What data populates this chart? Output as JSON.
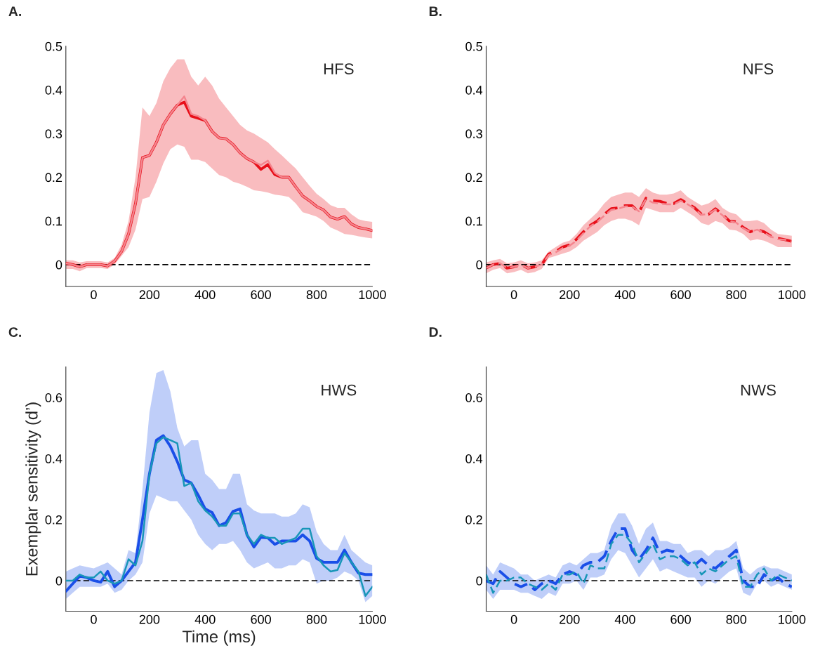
{
  "chart_data": [
    {
      "type": "line",
      "title": "A.",
      "annotations": [
        "HFS"
      ],
      "xlim": [
        -100,
        1000
      ],
      "xticks": [
        0,
        200,
        400,
        600,
        800,
        1000
      ],
      "ylim": [
        -0.05,
        0.5
      ],
      "yticks": [
        0,
        0.1,
        0.2,
        0.3,
        0.4,
        0.5
      ],
      "grid": false,
      "legend": false,
      "x": [
        -100,
        -75,
        -50,
        -25,
        0,
        25,
        50,
        75,
        100,
        125,
        150,
        175,
        200,
        225,
        250,
        275,
        300,
        325,
        350,
        375,
        400,
        425,
        450,
        475,
        500,
        525,
        550,
        575,
        600,
        625,
        650,
        675,
        700,
        725,
        750,
        775,
        800,
        825,
        850,
        875,
        900,
        925,
        950,
        975,
        1000
      ],
      "ref_lines": [
        {
          "axis": "y",
          "value": 0,
          "color": "#000000",
          "line_style": "dashed"
        }
      ],
      "series": [
        {
          "color": "#e8101a",
          "line_style": "solid",
          "values": [
            0.003,
            0.0,
            -0.005,
            0.0,
            0.0,
            0.0,
            -0.003,
            0.008,
            0.03,
            0.07,
            0.14,
            0.245,
            0.25,
            0.28,
            0.32,
            0.345,
            0.365,
            0.372,
            0.34,
            0.335,
            0.33,
            0.305,
            0.29,
            0.288,
            0.275,
            0.256,
            0.243,
            0.235,
            0.218,
            0.229,
            0.206,
            0.2,
            0.2,
            0.178,
            0.157,
            0.146,
            0.133,
            0.125,
            0.109,
            0.104,
            0.11,
            0.093,
            0.085,
            0.082,
            0.078
          ],
          "upper": [
            0.01,
            0.01,
            0.005,
            0.008,
            0.008,
            0.008,
            0.005,
            0.015,
            0.045,
            0.1,
            0.2,
            0.36,
            0.34,
            0.37,
            0.42,
            0.45,
            0.47,
            0.47,
            0.43,
            0.41,
            0.43,
            0.41,
            0.38,
            0.36,
            0.34,
            0.32,
            0.307,
            0.3,
            0.29,
            0.28,
            0.264,
            0.25,
            0.235,
            0.22,
            0.2,
            0.18,
            0.162,
            0.15,
            0.136,
            0.13,
            0.13,
            0.115,
            0.104,
            0.1,
            0.098
          ],
          "lower": [
            -0.01,
            -0.01,
            -0.015,
            -0.008,
            -0.008,
            -0.008,
            -0.01,
            0.0,
            0.02,
            0.04,
            0.08,
            0.15,
            0.155,
            0.19,
            0.232,
            0.264,
            0.275,
            0.27,
            0.24,
            0.24,
            0.235,
            0.22,
            0.205,
            0.2,
            0.19,
            0.185,
            0.178,
            0.17,
            0.168,
            0.165,
            0.16,
            0.158,
            0.155,
            0.14,
            0.12,
            0.115,
            0.11,
            0.1,
            0.085,
            0.078,
            0.07,
            0.068,
            0.065,
            0.062,
            0.06
          ]
        },
        {
          "color": "#f4858e",
          "line_style": "solid",
          "values": [
            0.003,
            0.0,
            -0.005,
            0.0,
            0.0,
            0.0,
            -0.003,
            0.008,
            0.03,
            0.07,
            0.14,
            0.245,
            0.25,
            0.28,
            0.32,
            0.345,
            0.365,
            0.385,
            0.345,
            0.34,
            0.33,
            0.305,
            0.29,
            0.288,
            0.275,
            0.256,
            0.243,
            0.235,
            0.228,
            0.238,
            0.21,
            0.2,
            0.2,
            0.178,
            0.157,
            0.146,
            0.133,
            0.125,
            0.109,
            0.104,
            0.11,
            0.093,
            0.085,
            0.082,
            0.078
          ]
        }
      ]
    },
    {
      "type": "line",
      "title": "B.",
      "annotations": [
        "NFS"
      ],
      "xlim": [
        -100,
        1000
      ],
      "xticks": [
        0,
        200,
        400,
        600,
        800,
        1000
      ],
      "ylim": [
        -0.05,
        0.5
      ],
      "yticks": [
        0,
        0.1,
        0.2,
        0.3,
        0.4,
        0.5
      ],
      "grid": false,
      "legend": false,
      "x": [
        -100,
        -75,
        -50,
        -25,
        0,
        25,
        50,
        75,
        100,
        125,
        150,
        175,
        200,
        225,
        250,
        275,
        300,
        325,
        350,
        375,
        400,
        425,
        450,
        475,
        500,
        525,
        550,
        575,
        600,
        625,
        650,
        675,
        700,
        725,
        750,
        775,
        800,
        825,
        850,
        875,
        900,
        925,
        950,
        975,
        1000
      ],
      "ref_lines": [
        {
          "axis": "y",
          "value": 0,
          "color": "#000000",
          "line_style": "dashed"
        }
      ],
      "series": [
        {
          "color": "#e8101a",
          "line_style": "dashed",
          "values": [
            -0.008,
            0.0,
            0.003,
            -0.008,
            -0.005,
            0.0,
            -0.008,
            -0.005,
            0.0,
            0.024,
            0.03,
            0.04,
            0.045,
            0.058,
            0.075,
            0.09,
            0.1,
            0.115,
            0.128,
            0.13,
            0.135,
            0.135,
            0.12,
            0.152,
            0.146,
            0.145,
            0.14,
            0.14,
            0.149,
            0.14,
            0.13,
            0.115,
            0.115,
            0.128,
            0.115,
            0.1,
            0.098,
            0.085,
            0.075,
            0.08,
            0.075,
            0.065,
            0.06,
            0.057,
            0.053
          ],
          "upper": [
            0.005,
            0.01,
            0.013,
            0.003,
            0.005,
            0.01,
            0.003,
            0.005,
            0.01,
            0.03,
            0.04,
            0.05,
            0.055,
            0.07,
            0.09,
            0.105,
            0.12,
            0.14,
            0.155,
            0.16,
            0.165,
            0.165,
            0.155,
            0.175,
            0.165,
            0.16,
            0.16,
            0.163,
            0.17,
            0.155,
            0.145,
            0.135,
            0.14,
            0.15,
            0.13,
            0.12,
            0.115,
            0.1,
            0.1,
            0.102,
            0.095,
            0.08,
            0.07,
            0.068,
            0.066
          ],
          "lower": [
            -0.02,
            -0.012,
            -0.008,
            -0.02,
            -0.017,
            -0.012,
            -0.02,
            -0.017,
            -0.01,
            0.015,
            0.02,
            0.025,
            0.03,
            0.04,
            0.055,
            0.065,
            0.075,
            0.09,
            0.1,
            0.105,
            0.105,
            0.1,
            0.09,
            0.13,
            0.125,
            0.12,
            0.12,
            0.12,
            0.13,
            0.12,
            0.11,
            0.095,
            0.09,
            0.1,
            0.095,
            0.08,
            0.078,
            0.07,
            0.055,
            0.058,
            0.055,
            0.048,
            0.04,
            0.04,
            0.04
          ]
        },
        {
          "color": "#f4858e",
          "line_style": "dashed",
          "values": [
            -0.008,
            0.0,
            0.003,
            -0.008,
            -0.005,
            0.0,
            -0.008,
            -0.005,
            0.0,
            0.022,
            0.028,
            0.038,
            0.043,
            0.055,
            0.072,
            0.088,
            0.098,
            0.112,
            0.125,
            0.128,
            0.133,
            0.133,
            0.122,
            0.15,
            0.142,
            0.14,
            0.138,
            0.138,
            0.146,
            0.138,
            0.128,
            0.114,
            0.116,
            0.126,
            0.113,
            0.1,
            0.096,
            0.083,
            0.075,
            0.08,
            0.073,
            0.064,
            0.058,
            0.057,
            0.053
          ]
        }
      ]
    },
    {
      "type": "line",
      "title": "C.",
      "annotations": [
        "HWS"
      ],
      "xlabel": "Time (ms)",
      "ylabel": "Exemplar sensitivity (d’)",
      "xlim": [
        -100,
        1000
      ],
      "xticks": [
        0,
        200,
        400,
        600,
        800,
        1000
      ],
      "ylim": [
        -0.1,
        0.7
      ],
      "yticks": [
        0,
        0.2,
        0.4,
        0.6
      ],
      "grid": false,
      "legend": false,
      "x": [
        -100,
        -75,
        -50,
        -25,
        0,
        25,
        50,
        75,
        100,
        125,
        150,
        175,
        200,
        225,
        250,
        275,
        300,
        325,
        350,
        375,
        400,
        425,
        450,
        475,
        500,
        525,
        550,
        575,
        600,
        625,
        650,
        675,
        700,
        725,
        750,
        775,
        800,
        825,
        850,
        875,
        900,
        925,
        950,
        975,
        1000
      ],
      "ref_lines": [
        {
          "axis": "y",
          "value": 0,
          "color": "#000000",
          "line_style": "dashed"
        }
      ],
      "series": [
        {
          "color": "#1a4fe8",
          "line_style": "solid",
          "values": [
            -0.035,
            -0.01,
            0.015,
            0.01,
            0.0,
            -0.005,
            0.03,
            -0.02,
            0.0,
            0.03,
            0.06,
            0.2,
            0.35,
            0.46,
            0.475,
            0.44,
            0.39,
            0.33,
            0.32,
            0.28,
            0.235,
            0.223,
            0.18,
            0.19,
            0.227,
            0.235,
            0.15,
            0.11,
            0.142,
            0.14,
            0.119,
            0.13,
            0.13,
            0.13,
            0.15,
            0.13,
            0.073,
            0.06,
            0.06,
            0.06,
            0.1,
            0.06,
            0.025,
            0.02,
            0.02
          ],
          "upper": [
            0.03,
            0.04,
            0.05,
            0.045,
            0.04,
            0.05,
            0.06,
            0.04,
            0.02,
            0.1,
            0.09,
            0.3,
            0.55,
            0.68,
            0.69,
            0.62,
            0.5,
            0.44,
            0.46,
            0.46,
            0.35,
            0.33,
            0.3,
            0.3,
            0.35,
            0.35,
            0.25,
            0.23,
            0.22,
            0.22,
            0.22,
            0.21,
            0.21,
            0.22,
            0.25,
            0.24,
            0.16,
            0.12,
            0.1,
            0.1,
            0.15,
            0.1,
            0.08,
            0.06,
            0.05
          ],
          "lower": [
            -0.06,
            -0.04,
            -0.02,
            -0.02,
            -0.02,
            -0.02,
            -0.01,
            -0.04,
            -0.03,
            0.0,
            0.02,
            0.06,
            0.22,
            0.28,
            0.27,
            0.26,
            0.26,
            0.23,
            0.2,
            0.15,
            0.12,
            0.1,
            0.12,
            0.12,
            0.13,
            0.1,
            0.06,
            0.04,
            0.05,
            0.06,
            0.04,
            0.04,
            0.05,
            0.05,
            0.07,
            0.06,
            -0.01,
            0.0,
            0.0,
            0.01,
            0.03,
            0.02,
            0.0,
            -0.07,
            -0.05
          ]
        },
        {
          "color": "#1896b8",
          "line_style": "solid",
          "values": [
            0.0,
            0.0,
            0.02,
            0.01,
            0.01,
            0.03,
            0.0,
            -0.01,
            0.0,
            0.07,
            0.05,
            0.13,
            0.35,
            0.45,
            0.47,
            0.46,
            0.45,
            0.31,
            0.32,
            0.26,
            0.23,
            0.21,
            0.18,
            0.18,
            0.22,
            0.22,
            0.15,
            0.12,
            0.15,
            0.14,
            0.14,
            0.12,
            0.13,
            0.14,
            0.17,
            0.17,
            0.08,
            0.05,
            0.03,
            0.035,
            0.09,
            0.06,
            0.03,
            -0.05,
            -0.02
          ]
        }
      ]
    },
    {
      "type": "line",
      "title": "D.",
      "annotations": [
        "NWS"
      ],
      "xlim": [
        -100,
        1000
      ],
      "xticks": [
        0,
        200,
        400,
        600,
        800,
        1000
      ],
      "ylim": [
        -0.1,
        0.7
      ],
      "yticks": [
        0,
        0.2,
        0.4,
        0.6
      ],
      "grid": false,
      "legend": false,
      "x": [
        -100,
        -75,
        -50,
        -25,
        0,
        25,
        50,
        75,
        100,
        125,
        150,
        175,
        200,
        225,
        250,
        275,
        300,
        325,
        350,
        375,
        400,
        425,
        450,
        475,
        500,
        525,
        550,
        575,
        600,
        625,
        650,
        675,
        700,
        725,
        750,
        775,
        800,
        825,
        850,
        875,
        900,
        925,
        950,
        975,
        1000
      ],
      "ref_lines": [
        {
          "axis": "y",
          "value": 0,
          "color": "#000000",
          "line_style": "dashed"
        }
      ],
      "series": [
        {
          "color": "#1a4fe8",
          "line_style": "dashed",
          "values": [
            0.0,
            -0.01,
            0.03,
            0.01,
            -0.01,
            -0.02,
            -0.01,
            -0.03,
            -0.01,
            0.0,
            -0.01,
            0.02,
            0.03,
            0.02,
            0.05,
            0.06,
            0.06,
            0.08,
            0.13,
            0.17,
            0.17,
            0.1,
            0.07,
            0.1,
            0.14,
            0.09,
            0.1,
            0.095,
            0.08,
            0.06,
            0.05,
            0.07,
            0.05,
            0.04,
            0.06,
            0.08,
            0.1,
            0.0,
            -0.02,
            -0.02,
            0.02,
            0.0,
            0.01,
            -0.01,
            -0.02
          ],
          "upper": [
            0.05,
            0.02,
            0.06,
            0.05,
            0.04,
            0.02,
            0.02,
            0.0,
            0.01,
            0.02,
            0.01,
            0.05,
            0.06,
            0.05,
            0.07,
            0.09,
            0.09,
            0.1,
            0.18,
            0.22,
            0.22,
            0.18,
            0.12,
            0.17,
            0.19,
            0.13,
            0.13,
            0.12,
            0.12,
            0.09,
            0.1,
            0.1,
            0.08,
            0.1,
            0.1,
            0.11,
            0.13,
            0.04,
            0.02,
            0.04,
            0.05,
            0.04,
            0.04,
            0.03,
            0.02
          ],
          "lower": [
            -0.03,
            -0.06,
            -0.03,
            -0.03,
            -0.03,
            -0.04,
            -0.04,
            -0.05,
            -0.06,
            -0.04,
            -0.05,
            -0.01,
            -0.01,
            0.0,
            -0.03,
            0.01,
            0.01,
            0.02,
            0.07,
            0.1,
            0.09,
            0.05,
            0.01,
            0.04,
            0.07,
            0.03,
            0.04,
            0.03,
            0.02,
            0.01,
            0.01,
            -0.02,
            0.0,
            -0.01,
            0.01,
            0.03,
            0.04,
            -0.04,
            -0.05,
            -0.01,
            0.0,
            -0.02,
            -0.01,
            -0.02,
            -0.03
          ]
        },
        {
          "color": "#1896b8",
          "line_style": "dashed",
          "values": [
            0.02,
            -0.04,
            0.0,
            0.0,
            0.01,
            0.01,
            -0.01,
            -0.02,
            -0.03,
            -0.01,
            -0.03,
            0.02,
            0.02,
            0.03,
            -0.01,
            0.05,
            0.04,
            0.04,
            0.12,
            0.15,
            0.15,
            0.12,
            0.06,
            0.09,
            0.12,
            0.07,
            0.08,
            0.08,
            0.07,
            0.05,
            0.06,
            0.02,
            0.04,
            0.03,
            0.05,
            0.07,
            0.08,
            -0.02,
            -0.02,
            0.02,
            0.04,
            0.0,
            0.02,
            0.01,
            0.0
          ]
        }
      ]
    }
  ]
}
